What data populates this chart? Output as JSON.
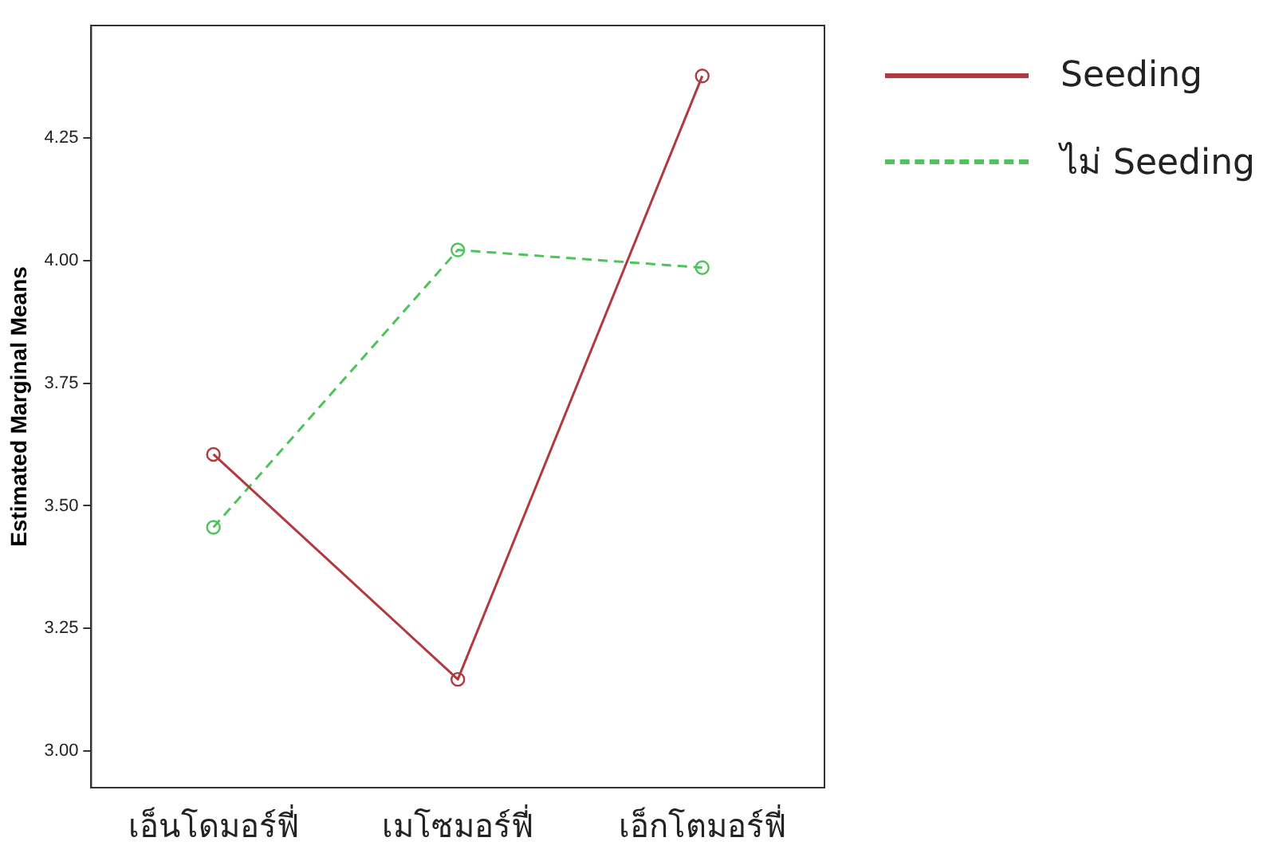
{
  "chart_data": {
    "type": "line",
    "ylabel": "Estimated Marginal Means",
    "categories": [
      "เอ็นโดมอร์ฟี่",
      "เมโซมอร์ฟี่",
      "เอ็กโตมอร์ฟี่"
    ],
    "series": [
      {
        "name": "Seeding",
        "color": "#b03a3e",
        "line_style": "solid",
        "values": [
          3.605,
          3.146,
          4.377
        ]
      },
      {
        "name": "ไม่ Seeding",
        "color": "#4cc45a",
        "line_style": "dashed",
        "values": [
          3.456,
          4.022,
          3.986
        ]
      }
    ],
    "ylim": [
      2.925,
      4.48
    ],
    "yticks": [
      {
        "value": 3,
        "label": "3.00"
      },
      {
        "value": 3.25,
        "label": "3.25"
      },
      {
        "value": 3.5,
        "label": "3.50"
      },
      {
        "value": 3.75,
        "label": "3.75"
      },
      {
        "value": 4,
        "label": "4.00"
      },
      {
        "value": 4.25,
        "label": "4.25"
      }
    ],
    "grid": false,
    "legend": "top right",
    "marker": "circle"
  }
}
